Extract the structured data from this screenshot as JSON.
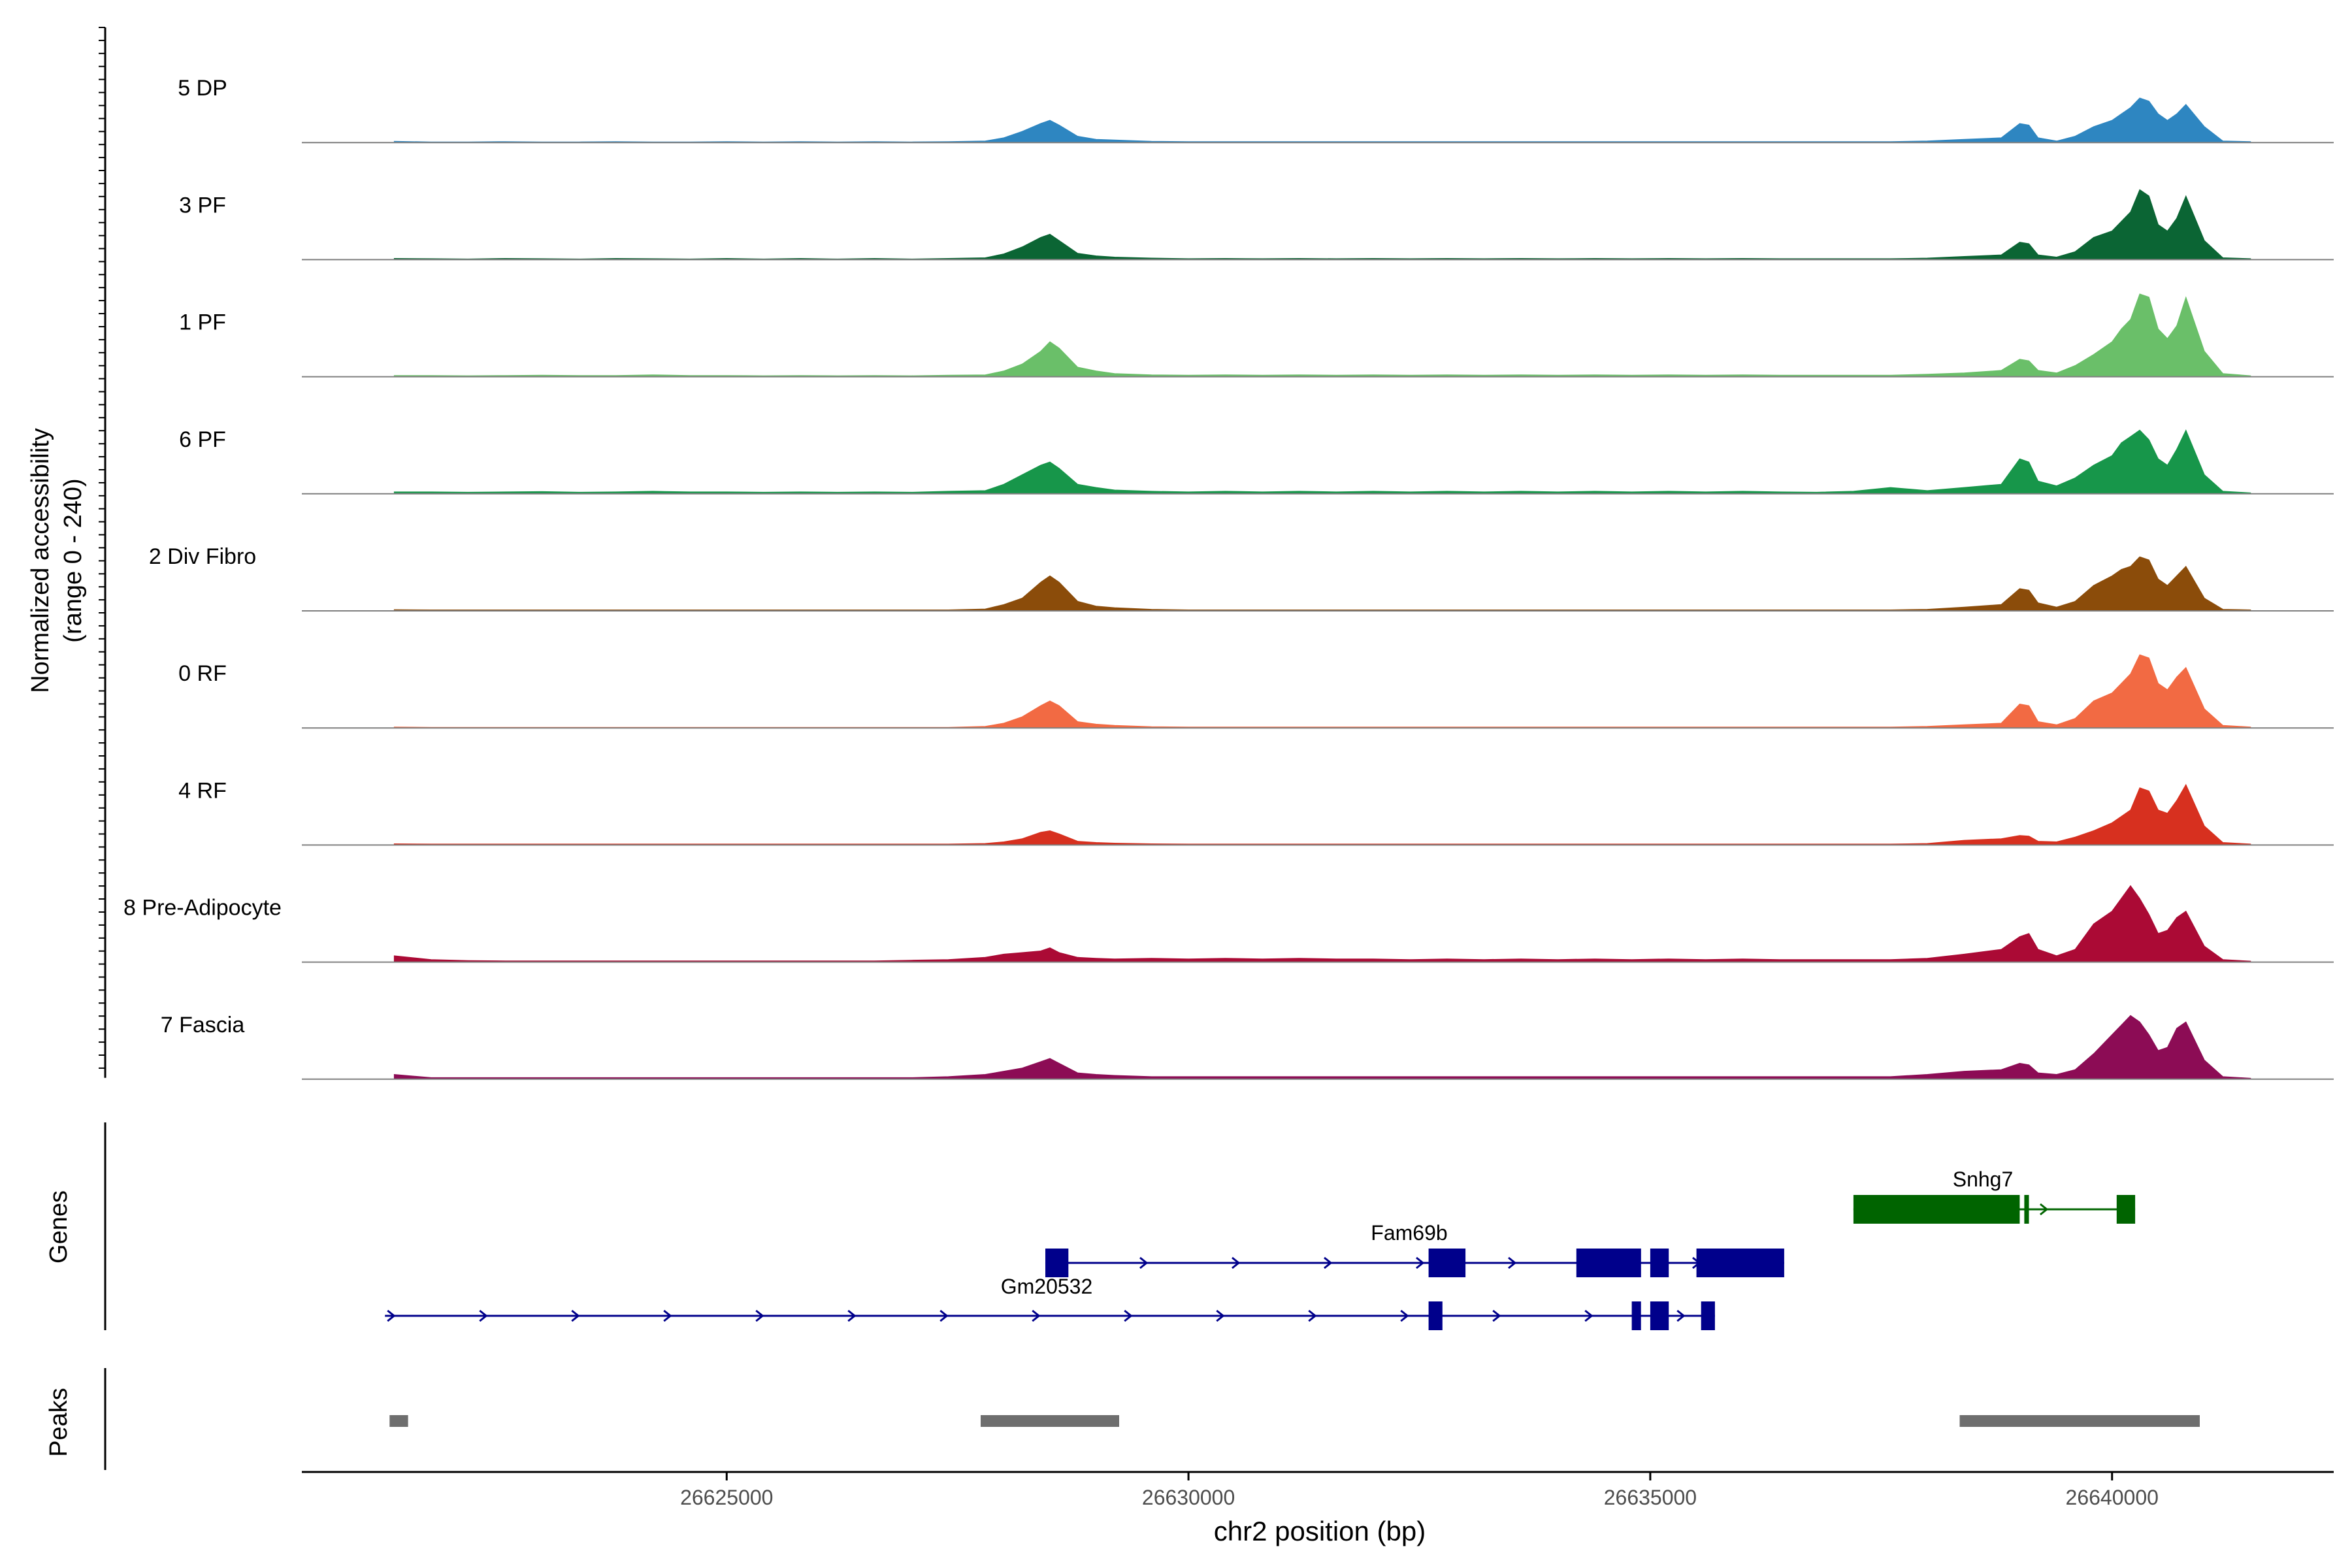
{
  "chart_data": {
    "type": "area",
    "title": "",
    "ylabel": "Normalized accessibility\n(range 0 - 240)",
    "xlabel": "chr2 position (bp)",
    "xlim": [
      26620400,
      26642400
    ],
    "ylim": [
      0,
      240
    ],
    "x_ticks": [
      26625000,
      26630000,
      26635000,
      26640000
    ],
    "x_tick_labels": [
      "26625000",
      "26630000",
      "26635000",
      "26640000"
    ],
    "x_data": [
      26621400,
      26621800,
      26622200,
      26622600,
      26623000,
      26623400,
      26623800,
      26624200,
      26624600,
      26625000,
      26625400,
      26625800,
      26626200,
      26626600,
      26627000,
      26627400,
      26627800,
      26628000,
      26628200,
      26628400,
      26628500,
      26628600,
      26628800,
      26629000,
      26629200,
      26629600,
      26630000,
      26630400,
      26630800,
      26631200,
      26631600,
      26632000,
      26632400,
      26632800,
      26633200,
      26633600,
      26634000,
      26634400,
      26634800,
      26635200,
      26635600,
      26636000,
      26636400,
      26636800,
      26637200,
      26637600,
      26638000,
      26638400,
      26638800,
      26639000,
      26639100,
      26639200,
      26639400,
      26639600,
      26639800,
      26640000,
      26640100,
      26640200,
      26640300,
      26640400,
      26640500,
      26640600,
      26640700,
      26640800,
      26641000,
      26641200,
      26641500
    ],
    "series": [
      {
        "name": "5 DP",
        "color": "#2e86c1",
        "values": [
          4,
          2,
          2,
          3,
          2,
          2,
          3,
          2,
          2,
          3,
          2,
          3,
          2,
          3,
          2,
          3,
          5,
          15,
          35,
          60,
          70,
          55,
          20,
          10,
          8,
          4,
          3,
          3,
          3,
          3,
          3,
          3,
          3,
          3,
          3,
          3,
          3,
          3,
          3,
          3,
          3,
          3,
          3,
          3,
          3,
          3,
          5,
          10,
          15,
          60,
          55,
          15,
          5,
          20,
          50,
          70,
          90,
          110,
          140,
          130,
          90,
          70,
          90,
          120,
          50,
          5,
          3
        ]
      },
      {
        "name": "3 PF",
        "color": "#0b6534",
        "values": [
          4,
          3,
          2,
          4,
          3,
          2,
          4,
          3,
          2,
          4,
          2,
          4,
          2,
          4,
          2,
          4,
          6,
          18,
          40,
          70,
          80,
          60,
          20,
          12,
          8,
          5,
          3,
          4,
          3,
          4,
          3,
          4,
          3,
          4,
          3,
          4,
          3,
          4,
          3,
          4,
          3,
          4,
          3,
          3,
          3,
          3,
          5,
          10,
          15,
          55,
          50,
          15,
          8,
          25,
          70,
          90,
          120,
          150,
          220,
          200,
          110,
          90,
          130,
          200,
          60,
          6,
          3
        ]
      },
      {
        "name": "1 PF",
        "color": "#6abf69",
        "values": [
          4,
          4,
          3,
          4,
          5,
          4,
          4,
          6,
          4,
          4,
          3,
          4,
          3,
          4,
          3,
          5,
          6,
          18,
          40,
          80,
          110,
          90,
          30,
          18,
          10,
          6,
          5,
          6,
          5,
          6,
          5,
          6,
          5,
          6,
          5,
          6,
          5,
          6,
          5,
          6,
          5,
          6,
          5,
          5,
          5,
          5,
          8,
          12,
          20,
          55,
          50,
          20,
          12,
          35,
          70,
          110,
          150,
          180,
          260,
          250,
          150,
          120,
          160,
          250,
          80,
          10,
          3
        ]
      },
      {
        "name": "6 PF",
        "color": "#17964a",
        "values": [
          6,
          6,
          5,
          6,
          7,
          5,
          6,
          8,
          6,
          6,
          5,
          6,
          5,
          6,
          5,
          8,
          10,
          30,
          60,
          90,
          100,
          80,
          30,
          20,
          12,
          8,
          6,
          8,
          6,
          8,
          6,
          8,
          6,
          8,
          6,
          8,
          6,
          8,
          6,
          8,
          6,
          8,
          6,
          5,
          8,
          20,
          10,
          20,
          30,
          110,
          100,
          40,
          25,
          50,
          90,
          120,
          160,
          180,
          200,
          170,
          110,
          90,
          140,
          200,
          60,
          8,
          3
        ]
      },
      {
        "name": "2 Div Fibro",
        "color": "#8b4c0a",
        "values": [
          4,
          3,
          3,
          3,
          3,
          3,
          3,
          3,
          3,
          3,
          3,
          3,
          3,
          3,
          3,
          3,
          6,
          20,
          40,
          90,
          110,
          90,
          30,
          15,
          10,
          5,
          3,
          3,
          3,
          3,
          3,
          3,
          3,
          3,
          3,
          3,
          3,
          3,
          3,
          3,
          3,
          3,
          3,
          3,
          3,
          3,
          5,
          12,
          20,
          70,
          65,
          25,
          12,
          30,
          80,
          110,
          130,
          140,
          170,
          160,
          100,
          80,
          110,
          140,
          40,
          5,
          3
        ]
      },
      {
        "name": "0 RF",
        "color": "#f26a43",
        "values": [
          3,
          2,
          2,
          2,
          2,
          2,
          2,
          2,
          2,
          2,
          2,
          2,
          2,
          2,
          2,
          2,
          5,
          15,
          35,
          70,
          85,
          70,
          20,
          12,
          8,
          4,
          3,
          3,
          3,
          3,
          3,
          3,
          3,
          3,
          3,
          3,
          3,
          3,
          3,
          3,
          3,
          3,
          3,
          3,
          3,
          3,
          5,
          10,
          15,
          75,
          70,
          20,
          10,
          30,
          85,
          110,
          140,
          170,
          230,
          220,
          140,
          120,
          160,
          190,
          60,
          8,
          3
        ]
      },
      {
        "name": "4 RF",
        "color": "#d7301f",
        "values": [
          4,
          3,
          3,
          3,
          3,
          3,
          3,
          3,
          3,
          3,
          3,
          3,
          3,
          3,
          3,
          3,
          5,
          10,
          20,
          40,
          45,
          35,
          12,
          8,
          6,
          4,
          3,
          3,
          3,
          3,
          3,
          3,
          3,
          3,
          3,
          3,
          3,
          3,
          3,
          3,
          3,
          3,
          3,
          3,
          3,
          3,
          5,
          15,
          20,
          30,
          28,
          12,
          10,
          25,
          45,
          70,
          90,
          110,
          180,
          170,
          110,
          100,
          140,
          190,
          60,
          8,
          3
        ]
      },
      {
        "name": "8 Pre-Adipocyte",
        "color": "#ab0a35",
        "values": [
          20,
          8,
          5,
          4,
          4,
          4,
          4,
          4,
          4,
          4,
          4,
          4,
          4,
          4,
          6,
          8,
          15,
          25,
          30,
          35,
          45,
          30,
          15,
          12,
          10,
          12,
          10,
          12,
          10,
          12,
          10,
          10,
          8,
          10,
          8,
          10,
          8,
          10,
          8,
          10,
          8,
          10,
          8,
          8,
          8,
          8,
          12,
          25,
          40,
          80,
          90,
          40,
          20,
          40,
          120,
          160,
          200,
          240,
          200,
          150,
          90,
          100,
          140,
          160,
          50,
          8,
          3
        ]
      },
      {
        "name": "7 Fascia",
        "color": "#8c0c55",
        "values": [
          15,
          5,
          5,
          5,
          5,
          5,
          5,
          5,
          5,
          5,
          5,
          5,
          5,
          5,
          5,
          8,
          15,
          25,
          35,
          55,
          65,
          50,
          20,
          15,
          12,
          8,
          8,
          8,
          8,
          8,
          8,
          8,
          8,
          8,
          8,
          8,
          8,
          8,
          8,
          8,
          8,
          8,
          8,
          8,
          8,
          8,
          15,
          25,
          30,
          50,
          45,
          20,
          15,
          30,
          80,
          140,
          170,
          200,
          180,
          140,
          90,
          100,
          160,
          180,
          60,
          8,
          3
        ]
      }
    ],
    "genes_label": "Genes",
    "peaks_label": "Peaks",
    "genes": [
      {
        "name": "Snhg7",
        "strand": "+",
        "color": "#006400",
        "start": 26637200,
        "end": 26640250,
        "exons": [
          [
            26637200,
            26639000
          ],
          [
            26639050,
            26639100
          ],
          [
            26640050,
            26640250
          ]
        ]
      },
      {
        "name": "Fam69b",
        "strand": "+",
        "color": "#00008b",
        "start": 26628450,
        "end": 26636450,
        "exons": [
          [
            26628450,
            26628700
          ],
          [
            26632600,
            26633000
          ],
          [
            26634200,
            26634900
          ],
          [
            26635000,
            26635200
          ],
          [
            26635500,
            26636450
          ]
        ]
      },
      {
        "name": "Gm20532",
        "strand": "+",
        "color": "#00008b",
        "start": 26621300,
        "end": 26635700,
        "exons": [
          [
            26632600,
            26632750
          ],
          [
            26634800,
            26634900
          ],
          [
            26635000,
            26635200
          ],
          [
            26635550,
            26635700
          ]
        ]
      }
    ],
    "peaks": [
      [
        26621350,
        26621550
      ],
      [
        26627750,
        26629250
      ],
      [
        26638350,
        26640950
      ]
    ]
  }
}
